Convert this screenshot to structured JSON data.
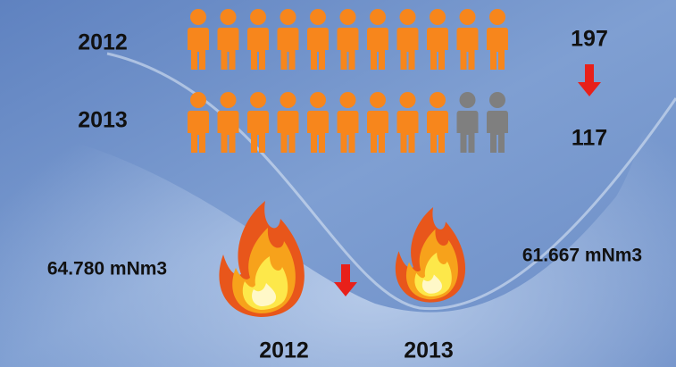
{
  "people": [
    {
      "year": "2012",
      "count": 197
    },
    {
      "year": "2013",
      "count": 117
    }
  ],
  "gas": {
    "before": {
      "value": "64.780 mNm3",
      "year": "2012"
    },
    "after": {
      "value": "61.667 mNm3",
      "year": "2013"
    }
  }
}
